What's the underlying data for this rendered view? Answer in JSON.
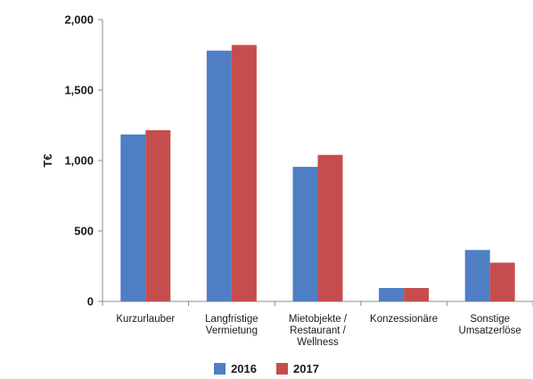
{
  "chart_data": {
    "type": "bar",
    "ylabel": "T€",
    "xlabel": "",
    "ylim": [
      0,
      2000
    ],
    "yticks": [
      "0",
      "500",
      "1,000",
      "1,500",
      "2,000"
    ],
    "categories": [
      [
        "Kurzurlauber"
      ],
      [
        "Langfristige",
        "Vermietung"
      ],
      [
        "Mietobjekte /",
        "Restaurant /",
        "Wellness"
      ],
      [
        "Konzessionäre"
      ],
      [
        "Sonstige",
        "Umsatzerlöse"
      ]
    ],
    "series": [
      {
        "name": "2016",
        "color": "#4f7ec4",
        "values": [
          1185,
          1780,
          955,
          95,
          365
        ]
      },
      {
        "name": "2017",
        "color": "#c64d4d",
        "values": [
          1215,
          1820,
          1040,
          95,
          275
        ]
      }
    ],
    "grid": false,
    "legend_position": "bottom"
  }
}
